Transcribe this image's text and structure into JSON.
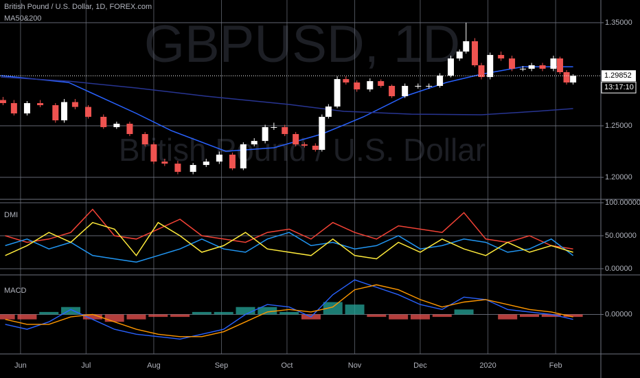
{
  "chart_data": [
    {
      "type": "candlestick",
      "title": "British Pound / U.S. Dollar, 1D, FOREX.com",
      "subtitle": "MA50&200",
      "watermark": "GBPUSD, 1D",
      "watermark_subtitle": "British Pound / U.S. Dollar",
      "up_color": "#ffffff",
      "down_color": "#ef5350",
      "xlim": [
        142.6,
        417.7
      ],
      "xticks": [
        {
          "value": 152,
          "label": "Jun"
        },
        {
          "value": 182,
          "label": "Jul"
        },
        {
          "value": 213,
          "label": "Aug"
        },
        {
          "value": 244,
          "label": "Sep"
        },
        {
          "value": 274,
          "label": "Oct"
        },
        {
          "value": 305,
          "label": "Nov"
        },
        {
          "value": 335,
          "label": "Dec"
        },
        {
          "value": 366,
          "label": "2020"
        },
        {
          "value": 397,
          "label": "Feb"
        }
      ],
      "ylim": [
        1.1787,
        1.372
      ],
      "yticks": [
        {
          "value": 1.2,
          "label": "1.20000"
        },
        {
          "value": 1.25,
          "label": "1.25000"
        },
        {
          "value": 1.35,
          "label": "1.35000"
        }
      ],
      "last_price": 1.29852,
      "time_label": "13:17:10",
      "grid": true,
      "ohlc": {
        "x": [
          144,
          149,
          155,
          161,
          168,
          172,
          177,
          183,
          190,
          196,
          202,
          209,
          213,
          218,
          224,
          231,
          237,
          243,
          249,
          254,
          259,
          264,
          268,
          273,
          278,
          282,
          287,
          290,
          293,
          297,
          301,
          306,
          312,
          317,
          322,
          328,
          334,
          339,
          344,
          349,
          353,
          356,
          360,
          363,
          367,
          372,
          377,
          382,
          386,
          391,
          396,
          399,
          402,
          405
        ],
        "open": [
          1.275,
          1.272,
          1.262,
          1.272,
          1.27,
          1.2553,
          1.273,
          1.2683,
          1.2587,
          1.2487,
          1.252,
          1.242,
          1.232,
          1.2153,
          1.2133,
          1.2053,
          1.212,
          1.2153,
          1.222,
          1.2087,
          1.232,
          1.2353,
          1.2487,
          1.2487,
          1.242,
          1.232,
          1.2307,
          1.2267,
          1.2587,
          1.2687,
          1.2953,
          1.292,
          1.2853,
          1.2933,
          1.2887,
          1.2787,
          1.2887,
          1.2887,
          1.2887,
          1.2987,
          1.3153,
          1.322,
          1.332,
          1.3087,
          1.2973,
          1.3187,
          1.3153,
          1.3053,
          1.3053,
          1.3087,
          1.3053,
          1.3153,
          1.302,
          1.292
        ],
        "high": [
          1.278,
          1.275,
          1.274,
          1.275,
          1.272,
          1.276,
          1.276,
          1.27,
          1.261,
          1.254,
          1.254,
          1.244,
          1.234,
          1.218,
          1.216,
          1.214,
          1.218,
          1.225,
          1.224,
          1.234,
          1.238,
          1.251,
          1.253,
          1.251,
          1.244,
          1.234,
          1.233,
          1.261,
          1.271,
          1.298,
          1.298,
          1.294,
          1.296,
          1.295,
          1.29,
          1.291,
          1.291,
          1.291,
          1.301,
          1.318,
          1.324,
          1.35,
          1.335,
          1.311,
          1.321,
          1.322,
          1.318,
          1.308,
          1.311,
          1.311,
          1.318,
          1.317,
          1.304,
          1.3
        ],
        "low": [
          1.27,
          1.26,
          1.26,
          1.268,
          1.253,
          1.253,
          1.266,
          1.257,
          1.247,
          1.247,
          1.24,
          1.23,
          1.213,
          1.211,
          1.203,
          1.203,
          1.21,
          1.213,
          1.207,
          1.207,
          1.23,
          1.233,
          1.246,
          1.24,
          1.23,
          1.229,
          1.225,
          1.225,
          1.257,
          1.267,
          1.29,
          1.283,
          1.283,
          1.287,
          1.277,
          1.277,
          1.286,
          1.286,
          1.287,
          1.297,
          1.313,
          1.32,
          1.307,
          1.295,
          1.295,
          1.313,
          1.303,
          1.303,
          1.303,
          1.303,
          1.303,
          1.3,
          1.29,
          1.29
        ],
        "close": [
          1.272,
          1.262,
          1.272,
          1.27,
          1.2553,
          1.273,
          1.2683,
          1.2587,
          1.2487,
          1.252,
          1.242,
          1.232,
          1.2153,
          1.2133,
          1.2053,
          1.212,
          1.2153,
          1.222,
          1.2087,
          1.232,
          1.2353,
          1.2487,
          1.2487,
          1.242,
          1.232,
          1.2307,
          1.2267,
          1.2587,
          1.2687,
          1.2953,
          1.292,
          1.2853,
          1.2933,
          1.2887,
          1.2787,
          1.2887,
          1.2887,
          1.2887,
          1.2987,
          1.3153,
          1.322,
          1.332,
          1.3087,
          1.2973,
          1.3187,
          1.3153,
          1.3053,
          1.3053,
          1.3087,
          1.3053,
          1.3153,
          1.302,
          1.292,
          1.2985
        ]
      },
      "series": [
        {
          "color": "#2962ff",
          "x": [
            143,
            174,
            205,
            221,
            246,
            268,
            290,
            309,
            328,
            347,
            363,
            382,
            405
          ],
          "values": [
            1.2987,
            1.292,
            1.262,
            1.2453,
            1.2253,
            1.2287,
            1.242,
            1.2587,
            1.2787,
            1.292,
            1.3,
            1.3073,
            1.3073
          ]
        },
        {
          "color": "#283593",
          "x": [
            143,
            174,
            205,
            237,
            275,
            300,
            331,
            363,
            388,
            405
          ],
          "values": [
            1.2973,
            1.2933,
            1.2867,
            1.2787,
            1.2707,
            1.264,
            1.2613,
            1.2607,
            1.264,
            1.2667
          ]
        }
      ]
    },
    {
      "type": "line",
      "title": "DMI",
      "ylim": [
        -9.4,
        105.2
      ],
      "yticks": [
        {
          "value": 0,
          "label": "0.00000"
        },
        {
          "value": 50,
          "label": "50.00000"
        },
        {
          "value": 100,
          "label": "100.00000"
        }
      ],
      "x": [
        145,
        155,
        165,
        175,
        185,
        195,
        205,
        215,
        225,
        235,
        245,
        255,
        265,
        275,
        285,
        295,
        305,
        315,
        325,
        335,
        345,
        355,
        365,
        375,
        385,
        395,
        405
      ],
      "series": [
        {
          "color": "#f44336",
          "values": [
            50,
            40,
            45,
            55,
            90,
            50,
            45,
            60,
            75,
            50,
            45,
            40,
            55,
            60,
            45,
            70,
            55,
            45,
            65,
            60,
            55,
            85,
            45,
            40,
            50,
            35,
            30
          ]
        },
        {
          "color": "#2196f3",
          "values": [
            35,
            45,
            30,
            40,
            20,
            15,
            10,
            20,
            30,
            45,
            30,
            25,
            45,
            55,
            35,
            40,
            30,
            35,
            50,
            30,
            35,
            45,
            40,
            25,
            30,
            45,
            20
          ]
        },
        {
          "color": "#ffeb3b",
          "values": [
            20,
            35,
            55,
            40,
            70,
            60,
            20,
            70,
            50,
            25,
            35,
            55,
            30,
            25,
            20,
            45,
            20,
            15,
            40,
            25,
            45,
            30,
            20,
            40,
            25,
            35,
            25
          ]
        }
      ]
    },
    {
      "type": "macd",
      "title": "MACD",
      "ylim": [
        -0.016,
        0.016
      ],
      "yticks": [
        {
          "value": 0,
          "label": "0.00000"
        }
      ],
      "x": [
        145,
        155,
        165,
        175,
        185,
        195,
        205,
        215,
        225,
        235,
        245,
        255,
        265,
        275,
        285,
        295,
        305,
        315,
        325,
        335,
        345,
        355,
        365,
        375,
        385,
        395,
        405
      ],
      "histogram": {
        "up_color": "#26a69a",
        "down_color": "#ef5350",
        "values": [
          -0.002,
          -0.002,
          0.001,
          0.003,
          -0.002,
          -0.003,
          -0.002,
          -0.001,
          -0.001,
          0.001,
          0.001,
          0.003,
          0.003,
          0.001,
          -0.002,
          0.005,
          0.004,
          -0.001,
          -0.002,
          -0.002,
          -0.001,
          0.002,
          0.0,
          -0.002,
          -0.001,
          -0.001,
          -0.001
        ]
      },
      "series": [
        {
          "color": "#2962ff",
          "values": [
            -0.004,
            -0.006,
            -0.003,
            0.002,
            -0.002,
            -0.006,
            -0.008,
            -0.009,
            -0.01,
            -0.008,
            -0.006,
            0.0,
            0.004,
            0.003,
            -0.001,
            0.008,
            0.014,
            0.011,
            0.008,
            0.004,
            0.002,
            0.007,
            0.006,
            0.002,
            0.001,
            0.0,
            -0.002
          ]
        },
        {
          "color": "#ff9800",
          "values": [
            -0.002,
            -0.004,
            -0.004,
            -0.001,
            0.0,
            -0.003,
            -0.006,
            -0.008,
            -0.009,
            -0.009,
            -0.007,
            -0.003,
            0.001,
            0.002,
            0.001,
            0.003,
            0.01,
            0.012,
            0.01,
            0.006,
            0.003,
            0.005,
            0.006,
            0.004,
            0.002,
            0.001,
            -0.001
          ]
        }
      ]
    }
  ]
}
